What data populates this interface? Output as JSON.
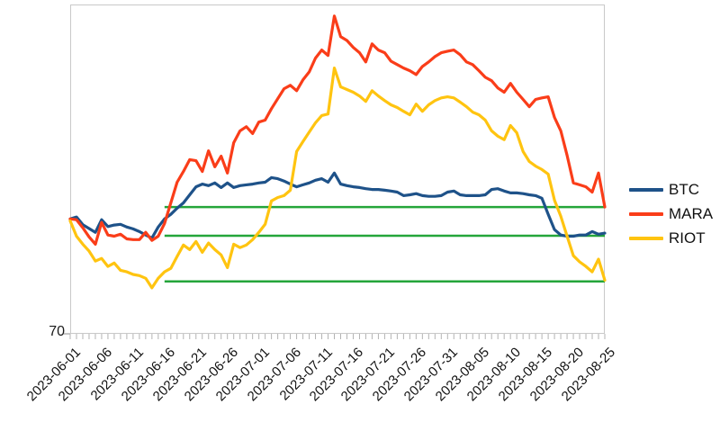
{
  "y_axis": {
    "min_label": "70"
  },
  "legend": {
    "items": [
      {
        "label": "BTC",
        "color": "#1e5289"
      },
      {
        "label": "MARA",
        "color": "#fa3d19"
      },
      {
        "label": "RIOT",
        "color": "#ffc410"
      }
    ]
  },
  "chart_data": {
    "type": "line",
    "title": "",
    "xlabel": "",
    "ylabel": "",
    "ylim": [
      70,
      156
    ],
    "grid": false,
    "legend_position": "right",
    "x_start_date": "2023-06-01",
    "x_end_date": "2023-08-25",
    "x_frequency": "daily",
    "x_tick_label_indices": [
      0,
      5,
      10,
      15,
      20,
      25,
      30,
      35,
      40,
      45,
      50,
      55,
      60,
      65,
      70,
      75,
      80,
      85
    ],
    "x_tick_labels": [
      "2023-06-01",
      "2023-06-06",
      "2023-06-11",
      "2023-06-16",
      "2023-06-21",
      "2023-06-26",
      "2023-07-01",
      "2023-07-06",
      "2023-07-11",
      "2023-07-16",
      "2023-07-21",
      "2023-07-26",
      "2023-07-31",
      "2023-08-05",
      "2023-08-10",
      "2023-08-15",
      "2023-08-20",
      "2023-08-25"
    ],
    "series": [
      {
        "name": "BTC",
        "color": "#1e5289",
        "values": [
          100.0,
          100.5,
          98.5,
          97.5,
          96.5,
          99.8,
          98.0,
          98.4,
          98.6,
          97.9,
          97.4,
          96.7,
          95.8,
          95.0,
          97.9,
          100.0,
          101.2,
          102.8,
          104.2,
          106.3,
          108.4,
          109.1,
          108.7,
          109.4,
          108.2,
          109.4,
          108.2,
          108.7,
          108.9,
          109.1,
          109.4,
          109.6,
          110.8,
          110.5,
          109.9,
          109.1,
          108.4,
          108.9,
          109.4,
          110.1,
          110.5,
          109.6,
          112.0,
          109.1,
          108.7,
          108.4,
          108.2,
          107.9,
          107.7,
          107.7,
          107.5,
          107.3,
          107.0,
          106.1,
          106.3,
          106.6,
          106.1,
          105.9,
          105.9,
          106.1,
          107.0,
          107.3,
          106.3,
          106.1,
          106.1,
          106.1,
          106.3,
          107.7,
          107.9,
          107.3,
          106.8,
          106.8,
          106.6,
          106.3,
          106.1,
          105.4,
          101.2,
          97.2,
          95.8,
          95.5,
          95.5,
          95.8,
          95.8,
          96.7,
          96.0,
          96.3
        ]
      },
      {
        "name": "MARA",
        "color": "#fa3d19",
        "values": [
          100.0,
          99.8,
          97.7,
          95.3,
          93.4,
          99.1,
          95.8,
          95.5,
          96.0,
          94.8,
          94.6,
          94.6,
          96.5,
          94.4,
          95.5,
          98.8,
          104.2,
          109.6,
          112.4,
          115.5,
          115.2,
          112.4,
          117.8,
          113.6,
          116.4,
          112.0,
          119.9,
          123.0,
          124.1,
          122.3,
          125.3,
          125.8,
          128.8,
          131.4,
          134.0,
          134.9,
          133.5,
          136.3,
          138.4,
          142.0,
          144.1,
          142.7,
          153.0,
          147.6,
          146.6,
          144.8,
          143.4,
          141.0,
          145.7,
          144.1,
          143.4,
          141.2,
          140.3,
          139.4,
          138.7,
          137.7,
          139.8,
          141.0,
          142.4,
          143.4,
          143.8,
          144.1,
          142.9,
          141.0,
          140.3,
          138.7,
          137.0,
          136.1,
          134.2,
          133.1,
          135.4,
          133.1,
          131.2,
          129.3,
          131.2,
          131.6,
          131.9,
          126.5,
          123.0,
          116.6,
          109.4,
          108.9,
          108.4,
          107.0,
          112.0,
          103.1
        ]
      },
      {
        "name": "RIOT",
        "color": "#ffc410",
        "values": [
          99.5,
          95.5,
          93.4,
          91.6,
          89.0,
          89.7,
          87.6,
          88.5,
          86.6,
          86.2,
          85.5,
          85.2,
          84.5,
          82.0,
          84.5,
          86.2,
          87.1,
          90.2,
          93.2,
          92.0,
          94.1,
          91.3,
          93.7,
          92.0,
          90.6,
          87.3,
          93.4,
          92.5,
          93.2,
          94.6,
          96.5,
          98.6,
          104.7,
          105.6,
          106.1,
          107.5,
          117.6,
          120.2,
          122.7,
          125.1,
          127.0,
          127.4,
          139.4,
          134.5,
          133.8,
          133.1,
          132.1,
          130.7,
          133.5,
          132.1,
          130.9,
          129.8,
          129.1,
          128.1,
          127.2,
          130.0,
          128.1,
          129.8,
          130.9,
          131.6,
          131.9,
          131.6,
          130.5,
          129.3,
          127.9,
          127.2,
          125.8,
          123.0,
          121.6,
          120.7,
          124.4,
          122.5,
          117.6,
          115.0,
          113.8,
          112.9,
          111.7,
          104.9,
          100.7,
          95.5,
          90.4,
          88.8,
          87.6,
          86.2,
          89.5,
          84.0
        ]
      }
    ],
    "reference_lines": [
      {
        "value": 103.1,
        "start_index": 15,
        "end_index": 85,
        "color": "#24a53a"
      },
      {
        "value": 95.6,
        "start_index": 15,
        "end_index": 85,
        "color": "#24a53a"
      },
      {
        "value": 83.7,
        "start_index": 15,
        "end_index": 85,
        "color": "#24a53a"
      }
    ]
  }
}
